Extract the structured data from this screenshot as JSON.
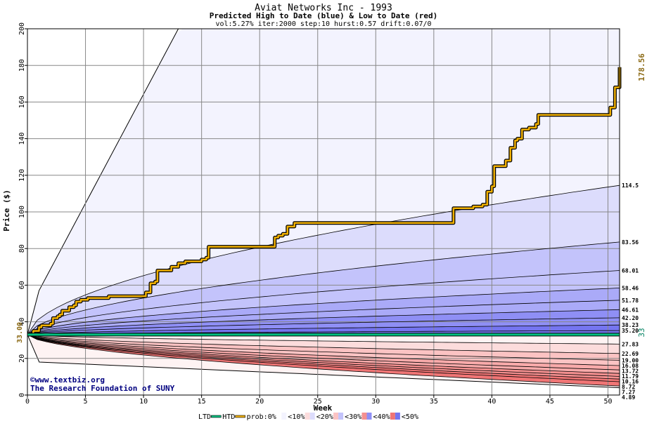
{
  "chart_data": {
    "type": "area",
    "title": "Aviat Networks Inc - 1993",
    "subtitle": "Predicted High to Date (blue) &  Low to Date (red)",
    "params": "vol:5.27% iter:2000 step:10 hurst:0.57 drift:0.07/0",
    "xlabel": "Week",
    "ylabel": "Price ($)",
    "xlim": [
      0,
      51
    ],
    "ylim": [
      0,
      200
    ],
    "x_ticks": [
      0,
      5,
      10,
      15,
      20,
      25,
      30,
      35,
      40,
      45,
      50
    ],
    "y_ticks": [
      0,
      20,
      40,
      60,
      80,
      100,
      120,
      140,
      160,
      180,
      200
    ],
    "grid": true,
    "start_price": 33,
    "start_label": "33.00",
    "right_value_label": "33",
    "max_label": "178.56",
    "colors": {
      "high_bands": [
        "#f3f3fe",
        "#dcdcfc",
        "#c3c3fb",
        "#aaaaf8",
        "#8f8ff5",
        "#7575f0"
      ],
      "low_bands": [
        "#fef3f3",
        "#fcdcdc",
        "#fbc3c3",
        "#f8aaaa",
        "#f59090",
        "#f07575"
      ],
      "htd_line": "#f0b000",
      "ltd_line": "#00c080",
      "start_label": "#8b6914",
      "right_label": "#008060"
    },
    "upper_bound_curve": {
      "x": [
        0,
        1,
        13
      ],
      "y": [
        33,
        57,
        200
      ]
    },
    "lower_bound_curve": {
      "x": [
        0,
        1,
        51
      ],
      "y": [
        33,
        18,
        4
      ]
    },
    "high_quantiles": [
      {
        "end_label": "114.5",
        "end": 114.5
      },
      {
        "end_label": "83.56",
        "end": 83.56
      },
      {
        "end_label": "68.01",
        "end": 68.01
      },
      {
        "end_label": "58.46",
        "end": 58.46
      },
      {
        "end_label": "51.78",
        "end": 51.78
      },
      {
        "end_label": "46.61",
        "end": 46.61
      },
      {
        "end_label": "42.20",
        "end": 42.2
      },
      {
        "end_label": "38.23",
        "end": 38.23
      },
      {
        "end_label": "35.20",
        "end": 35.2
      }
    ],
    "low_quantiles": [
      {
        "end_label": "27.83",
        "end": 27.83
      },
      {
        "end_label": "22.69",
        "end": 22.69
      },
      {
        "end_label": "19.00",
        "end": 19.0
      },
      {
        "end_label": "16.08",
        "end": 16.08
      },
      {
        "end_label": "13.72",
        "end": 13.72
      },
      {
        "end_label": "11.79",
        "end": 11.79
      },
      {
        "end_label": "10.16",
        "end": 10.16
      },
      {
        "end_label": "8.72",
        "end": 8.72
      },
      {
        "end_label": "7.27",
        "end": 7.27
      },
      {
        "end_label": "4.89",
        "end": 4.89
      }
    ],
    "series": [
      {
        "name": "HTD",
        "x": [
          0,
          0.5,
          1,
          1.2,
          1.6,
          2.0,
          2.2,
          2.6,
          2.8,
          3.0,
          3.2,
          3.4,
          3.6,
          4.0,
          4.2,
          4.6,
          5.0,
          5.2,
          7.0,
          8.0,
          9.0,
          9.8,
          10.2,
          10.6,
          11.0,
          11.2,
          12.0,
          12.4,
          13.0,
          13.4,
          13.6,
          14.0,
          15.0,
          15.4,
          15.6,
          21.0,
          21.3,
          21.6,
          22.0,
          22.4,
          23.0,
          36.5,
          36.7,
          38.0,
          38.4,
          39.0,
          39.2,
          39.6,
          40.0,
          40.2,
          41.0,
          41.2,
          41.6,
          42.0,
          42.2,
          42.6,
          43.0,
          43.2,
          43.8,
          44.0,
          50.0,
          50.2,
          50.6,
          51.0
        ],
        "y": [
          33,
          35,
          37,
          38,
          38,
          39,
          42,
          43,
          44,
          46,
          46,
          46,
          48,
          49,
          51,
          52,
          52,
          53,
          54,
          54,
          54,
          54,
          56,
          61,
          62,
          68,
          68,
          70,
          72,
          72,
          73,
          73,
          74,
          75,
          81,
          81,
          86,
          87,
          88,
          92,
          94,
          94,
          102,
          102,
          103,
          103,
          104,
          111,
          114,
          125,
          125,
          128,
          135,
          139,
          140,
          145,
          145,
          146,
          148,
          153,
          153,
          157,
          168,
          179
        ]
      },
      {
        "name": "LTD",
        "x": [
          0,
          51
        ],
        "y": [
          33,
          33
        ]
      }
    ],
    "legend": {
      "placement": "bottom",
      "items": [
        "LTD",
        "HTD",
        "prob:0%",
        "<10%",
        "<20%",
        "<30%",
        "<40%",
        "<50%"
      ]
    },
    "credit_1": "©www.textbiz.org",
    "credit_2": "The Research Foundation of SUNY"
  }
}
